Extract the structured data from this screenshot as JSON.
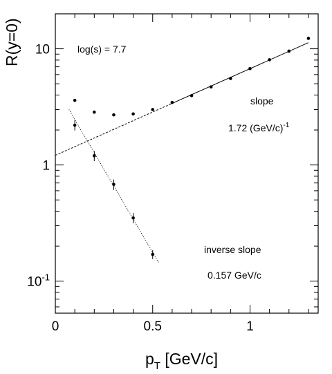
{
  "chart_data": {
    "type": "scatter",
    "xlabel": "p",
    "xlabel_sub": "T",
    "xlabel_unit": " [GeV/c]",
    "ylabel": "R(y=0)",
    "xlim": [
      0,
      1.35
    ],
    "ylim": [
      0.053,
      20
    ],
    "yscale": "log",
    "x_ticks": [
      0,
      0.5,
      1
    ],
    "x_tick_labels": [
      "0",
      "0.5",
      "1"
    ],
    "y_ticks": [
      0.1,
      1,
      10
    ],
    "y_tick_labels": [
      {
        "base": "10",
        "sup": "-1"
      },
      {
        "base": "1",
        "sup": ""
      },
      {
        "base": "10",
        "sup": ""
      }
    ],
    "grid": false,
    "series": [
      {
        "marker": "dot",
        "x": [
          0.1,
          0.2,
          0.3,
          0.4,
          0.5,
          0.6,
          0.7,
          0.8,
          0.9,
          1.0,
          1.1,
          1.2,
          1.3
        ],
        "y": [
          3.6,
          2.85,
          2.7,
          2.75,
          3.0,
          3.45,
          3.95,
          4.7,
          5.55,
          6.75,
          8.05,
          9.55,
          12.3
        ]
      },
      {
        "marker": "dot-errorbar",
        "x": [
          0.1,
          0.2,
          0.3,
          0.4,
          0.5
        ],
        "y": [
          2.2,
          1.2,
          0.68,
          0.35,
          0.17
        ],
        "yerr_low": [
          1.98,
          1.08,
          0.61,
          0.315,
          0.155
        ],
        "yerr_high": [
          2.42,
          1.32,
          0.75,
          0.385,
          0.185
        ]
      }
    ],
    "fits": [
      {
        "style": "dashed",
        "x": [
          0.0,
          0.6
        ],
        "y": [
          1.21,
          3.39
        ]
      },
      {
        "style": "solid",
        "x": [
          0.6,
          1.3
        ],
        "y": [
          3.39,
          11.3
        ]
      },
      {
        "style": "dotted",
        "x": [
          0.07,
          0.53
        ],
        "y": [
          3.0,
          0.145
        ]
      }
    ],
    "annotations": {
      "energy": "log(s) = 7.7",
      "slope_title": "slope",
      "slope_value": "1.72 (GeV/c)",
      "slope_value_sup": "-1",
      "inv_title": "inverse slope",
      "inv_value": "0.157 GeV/c"
    }
  }
}
